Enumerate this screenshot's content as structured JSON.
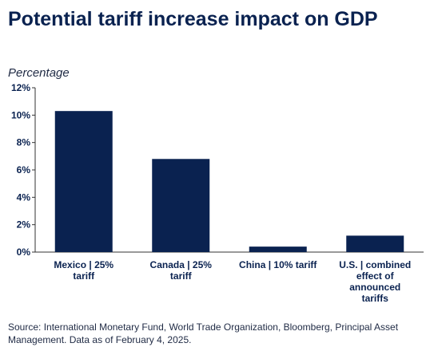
{
  "title": "Potential tariff increase impact on GDP",
  "source": "Source: International Monetary Fund, World Trade Organization, Bloomberg, Principal Asset Management. Data as of February 4, 2025.",
  "colors": {
    "bar": "#0a2250",
    "text": "#0a2250",
    "axis": "#333333"
  },
  "chart_data": {
    "type": "bar",
    "title": "Potential tariff increase impact on GDP",
    "ylabel": "Percentage",
    "xlabel": "",
    "ylim": [
      0,
      12
    ],
    "yticks": [
      0,
      2,
      4,
      6,
      8,
      10,
      12
    ],
    "ytick_labels": [
      "0%",
      "2%",
      "4%",
      "6%",
      "8%",
      "10%",
      "12%"
    ],
    "grid": false,
    "categories": [
      [
        "Mexico | 25%",
        "tariff"
      ],
      [
        "Canada | 25%",
        "tariff"
      ],
      [
        "China | 10% tariff"
      ],
      [
        "U.S. | combined",
        "effect of",
        "announced",
        "tariffs"
      ]
    ],
    "values": [
      10.3,
      6.8,
      0.4,
      1.2
    ]
  }
}
